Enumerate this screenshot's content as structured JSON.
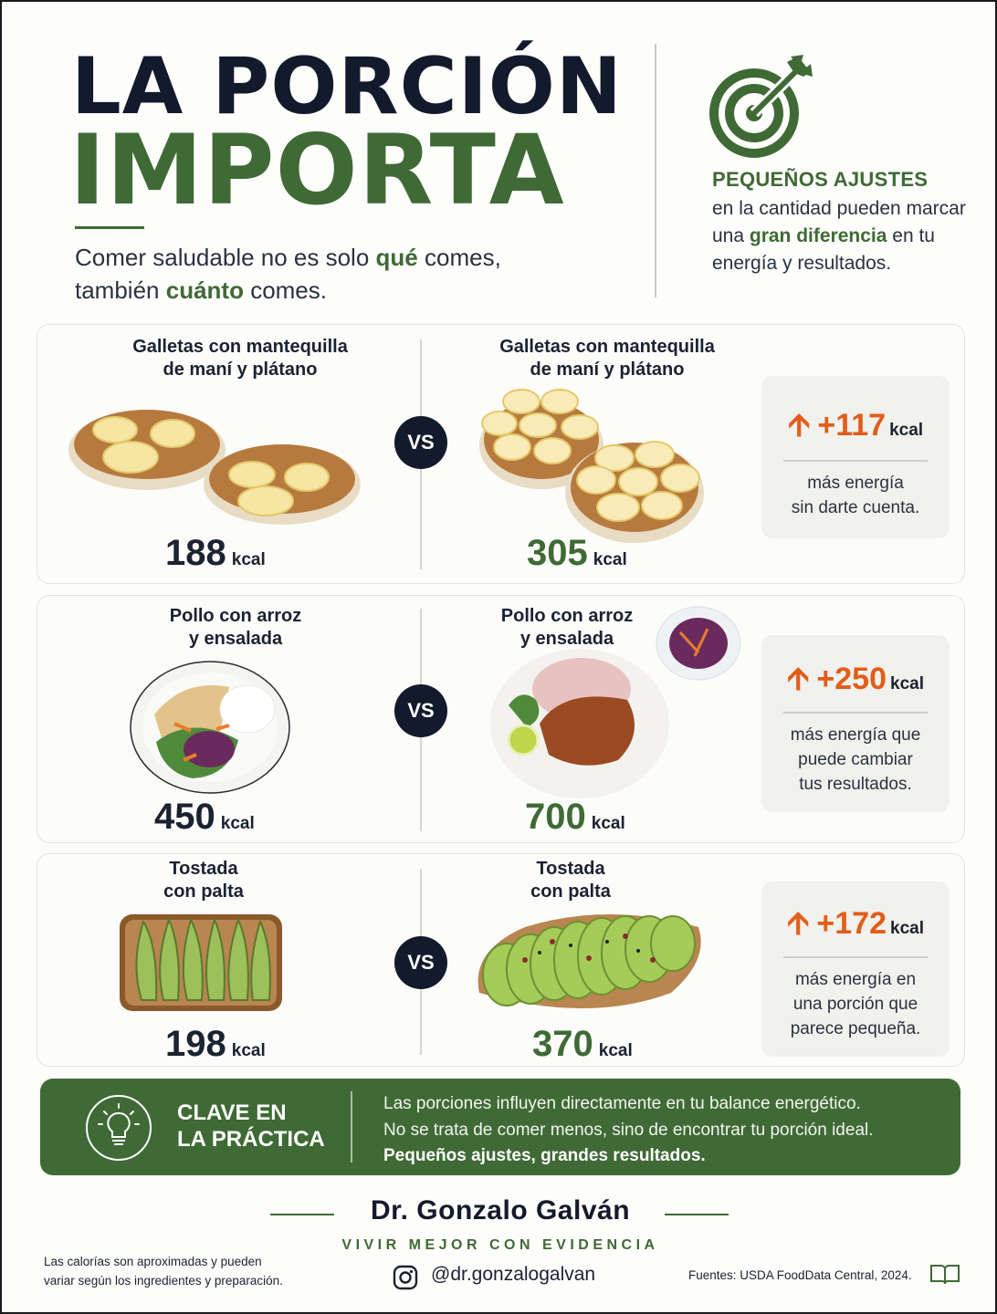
{
  "header": {
    "title_line1": "LA PORCIÓN",
    "title_line2": "IMPORTA",
    "subtitle": {
      "line1_pre": "Comer saludable no es solo ",
      "line1_em": "qué",
      "line1_post": " comes,",
      "line2_pre": "también ",
      "line2_em": "cuánto",
      "line2_post": " comes."
    },
    "side_heading": "PEQUEÑOS AJUSTES",
    "side_text": {
      "pre": "en la cantidad pueden marcar una ",
      "em": "gran diferencia",
      "post": " en tu energía y resultados."
    },
    "target_icon": "target-arrow-icon"
  },
  "comparisons": [
    {
      "left_title_1": "Galletas con mantequilla",
      "left_title_2": "de maní y plátano",
      "left_kcal": "188",
      "right_title_1": "Galletas con mantequilla",
      "right_title_2": "de maní y plátano",
      "right_kcal": "305",
      "vs": "VS",
      "unit": "kcal",
      "diff": "+117",
      "diff_text_1": "más energía",
      "diff_text_2": "sin darte cuenta.",
      "diff_text_3": ""
    },
    {
      "left_title_1": "Pollo con arroz",
      "left_title_2": "y ensalada",
      "left_kcal": "450",
      "right_title_1": "Pollo con arroz",
      "right_title_2": "y ensalada",
      "right_kcal": "700",
      "vs": "VS",
      "unit": "kcal",
      "diff": "+250",
      "diff_text_1": "más energía que",
      "diff_text_2": "puede cambiar",
      "diff_text_3": "tus resultados."
    },
    {
      "left_title_1": "Tostada",
      "left_title_2": "con palta",
      "left_kcal": "198",
      "right_title_1": "Tostada",
      "right_title_2": "con palta",
      "right_kcal": "370",
      "vs": "VS",
      "unit": "kcal",
      "diff": "+172",
      "diff_text_1": "más energía en",
      "diff_text_2": "una porción que",
      "diff_text_3": "parece pequeña."
    }
  ],
  "key": {
    "title_1": "CLAVE EN",
    "title_2": "LA PRÁCTICA",
    "line1": "Las porciones influyen directamente en tu balance energético.",
    "line2": "No se trata de comer menos, sino de encontrar tu porción ideal.",
    "line3": "Pequeños ajustes, grandes resultados.",
    "icon": "lightbulb-icon"
  },
  "footer": {
    "author": "Dr. Gonzalo Galván",
    "motto": "VIVIR MEJOR CON EVIDENCIA",
    "disclaimer_1": "Las calorías son aproximadas y pueden",
    "disclaimer_2": "variar según los ingredientes y preparación.",
    "handle": "@dr.gonzalogalvan",
    "sources": "Fuentes: USDA FoodData Central, 2024.",
    "instagram_icon": "instagram-icon",
    "book_icon": "book-icon"
  },
  "colors": {
    "navy": "#121a2b",
    "green": "#3f6a35",
    "orange": "#e35d1a",
    "panel": "#f1f1ed"
  }
}
